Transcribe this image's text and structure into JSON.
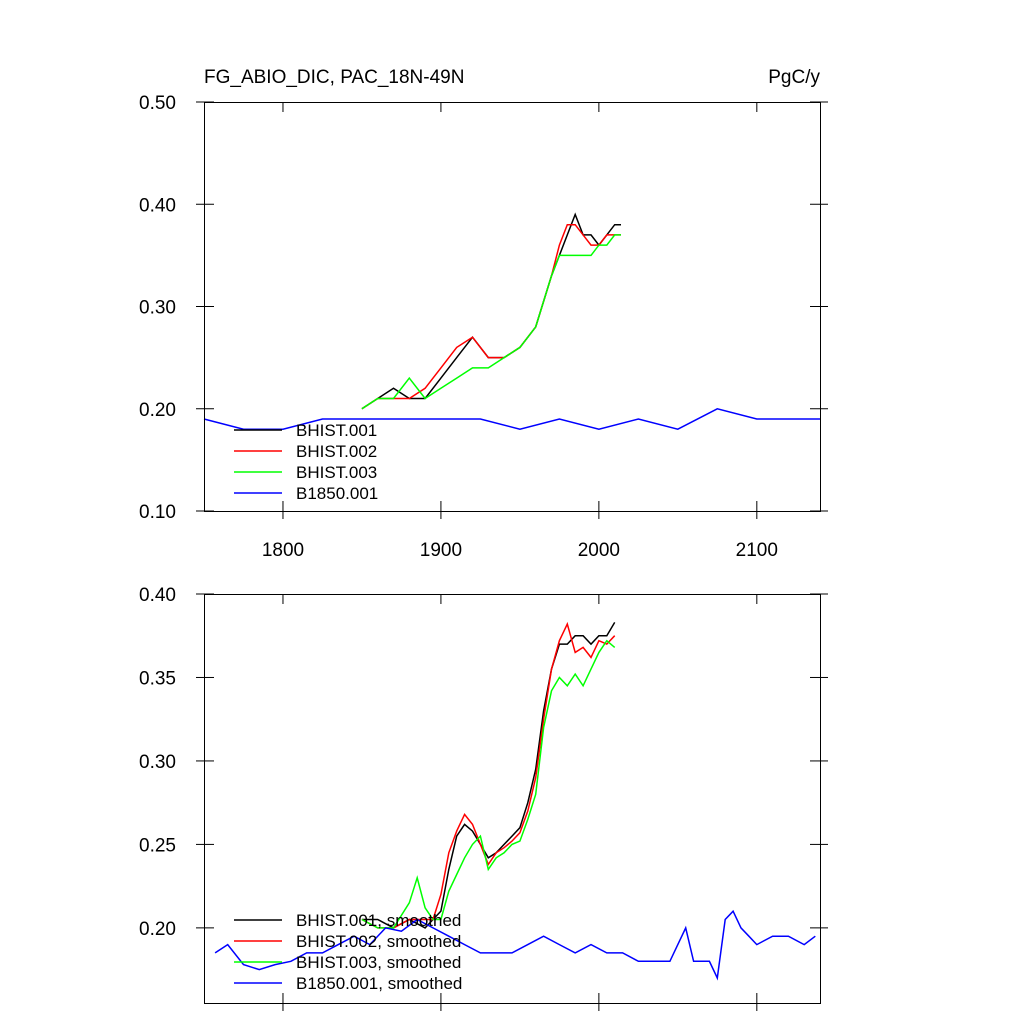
{
  "header": {
    "title_left": "FG_ABIO_DIC, PAC_18N-49N",
    "title_right": "PgC/y"
  },
  "colors": {
    "BHIST.001": "#000000",
    "BHIST.002": "#ff0000",
    "BHIST.003": "#00ff00",
    "B1850.001": "#0000ff"
  },
  "chart_data": [
    {
      "type": "line",
      "title": "FG_ABIO_DIC, PAC_18N-49N",
      "units": "PgC/y",
      "xlim": [
        1750,
        2140
      ],
      "ylim": [
        0.1,
        0.5
      ],
      "xticks": [
        1800,
        1900,
        2000,
        2100
      ],
      "xtick_labels": [
        "1800",
        "1900",
        "2000",
        "2100"
      ],
      "yticks": [
        0.1,
        0.2,
        0.3,
        0.4,
        0.5
      ],
      "ytick_labels": [
        "0.10",
        "0.20",
        "0.30",
        "0.40",
        "0.50"
      ],
      "legend_position": "bottom-left",
      "series": [
        {
          "name": "BHIST.001",
          "color": "#000000",
          "x": [
            1850,
            1860,
            1870,
            1880,
            1890,
            1900,
            1910,
            1920,
            1930,
            1940,
            1950,
            1960,
            1970,
            1975,
            1980,
            1985,
            1990,
            1995,
            2000,
            2005,
            2010,
            2014
          ],
          "y": [
            0.2,
            0.21,
            0.22,
            0.21,
            0.21,
            0.23,
            0.25,
            0.27,
            0.25,
            0.25,
            0.26,
            0.28,
            0.33,
            0.35,
            0.37,
            0.39,
            0.37,
            0.37,
            0.36,
            0.37,
            0.38,
            0.38
          ]
        },
        {
          "name": "BHIST.002",
          "color": "#ff0000",
          "x": [
            1850,
            1860,
            1870,
            1880,
            1890,
            1900,
            1910,
            1920,
            1930,
            1940,
            1950,
            1960,
            1970,
            1975,
            1980,
            1985,
            1990,
            1995,
            2000,
            2005,
            2010,
            2014
          ],
          "y": [
            0.2,
            0.21,
            0.21,
            0.21,
            0.22,
            0.24,
            0.26,
            0.27,
            0.25,
            0.25,
            0.26,
            0.28,
            0.33,
            0.36,
            0.38,
            0.38,
            0.37,
            0.36,
            0.36,
            0.37,
            0.37,
            0.37
          ]
        },
        {
          "name": "BHIST.003",
          "color": "#00ff00",
          "x": [
            1850,
            1860,
            1870,
            1880,
            1890,
            1900,
            1910,
            1920,
            1930,
            1940,
            1950,
            1960,
            1970,
            1975,
            1980,
            1985,
            1990,
            1995,
            2000,
            2005,
            2010,
            2014
          ],
          "y": [
            0.2,
            0.21,
            0.21,
            0.23,
            0.21,
            0.22,
            0.23,
            0.24,
            0.24,
            0.25,
            0.26,
            0.28,
            0.33,
            0.35,
            0.35,
            0.35,
            0.35,
            0.35,
            0.36,
            0.36,
            0.37,
            0.37
          ]
        },
        {
          "name": "B1850.001",
          "color": "#0000ff",
          "x": [
            1750,
            1775,
            1800,
            1825,
            1850,
            1875,
            1900,
            1925,
            1950,
            1975,
            2000,
            2025,
            2050,
            2075,
            2100,
            2125,
            2140
          ],
          "y": [
            0.19,
            0.18,
            0.18,
            0.19,
            0.19,
            0.19,
            0.19,
            0.19,
            0.18,
            0.19,
            0.18,
            0.19,
            0.18,
            0.2,
            0.19,
            0.19,
            0.19
          ]
        }
      ]
    },
    {
      "type": "line",
      "xlim": [
        1750,
        2140
      ],
      "ylim": [
        0.155,
        0.4
      ],
      "xticks": [
        1800,
        1900,
        2000,
        2100
      ],
      "yticks": [
        0.2,
        0.25,
        0.3,
        0.35,
        0.4
      ],
      "ytick_labels": [
        "0.20",
        "0.25",
        "0.30",
        "0.35",
        "0.40"
      ],
      "legend_position": "bottom-left",
      "series": [
        {
          "name": "BHIST.001, smoothed",
          "color": "#000000",
          "x": [
            1850,
            1860,
            1870,
            1880,
            1890,
            1895,
            1900,
            1905,
            1910,
            1915,
            1920,
            1925,
            1930,
            1935,
            1940,
            1945,
            1950,
            1955,
            1960,
            1965,
            1970,
            1975,
            1980,
            1985,
            1990,
            1995,
            2000,
            2005,
            2010
          ],
          "y": [
            0.205,
            0.205,
            0.2,
            0.205,
            0.2,
            0.205,
            0.21,
            0.235,
            0.255,
            0.262,
            0.258,
            0.25,
            0.242,
            0.245,
            0.25,
            0.255,
            0.26,
            0.275,
            0.295,
            0.33,
            0.355,
            0.37,
            0.37,
            0.375,
            0.375,
            0.37,
            0.375,
            0.375,
            0.383
          ]
        },
        {
          "name": "BHIST.002, smoothed",
          "color": "#ff0000",
          "x": [
            1850,
            1860,
            1870,
            1880,
            1890,
            1895,
            1900,
            1905,
            1910,
            1915,
            1920,
            1925,
            1930,
            1935,
            1940,
            1945,
            1950,
            1955,
            1960,
            1965,
            1970,
            1975,
            1980,
            1985,
            1990,
            1995,
            2000,
            2005,
            2010
          ],
          "y": [
            0.205,
            0.2,
            0.2,
            0.205,
            0.205,
            0.205,
            0.22,
            0.245,
            0.258,
            0.268,
            0.262,
            0.25,
            0.238,
            0.245,
            0.248,
            0.252,
            0.257,
            0.27,
            0.29,
            0.325,
            0.355,
            0.372,
            0.382,
            0.365,
            0.368,
            0.362,
            0.372,
            0.37,
            0.375
          ]
        },
        {
          "name": "BHIST.003, smoothed",
          "color": "#00ff00",
          "x": [
            1850,
            1860,
            1870,
            1880,
            1885,
            1890,
            1895,
            1900,
            1905,
            1910,
            1915,
            1920,
            1925,
            1930,
            1935,
            1940,
            1945,
            1950,
            1955,
            1960,
            1965,
            1970,
            1975,
            1980,
            1985,
            1990,
            1995,
            2000,
            2005,
            2010
          ],
          "y": [
            0.205,
            0.2,
            0.2,
            0.215,
            0.23,
            0.212,
            0.205,
            0.205,
            0.222,
            0.232,
            0.242,
            0.25,
            0.255,
            0.235,
            0.242,
            0.245,
            0.25,
            0.252,
            0.265,
            0.28,
            0.32,
            0.342,
            0.35,
            0.345,
            0.352,
            0.345,
            0.355,
            0.365,
            0.372,
            0.368
          ]
        },
        {
          "name": "B1850.001, smoothed",
          "color": "#0000ff",
          "x": [
            1757,
            1765,
            1775,
            1785,
            1795,
            1805,
            1815,
            1825,
            1835,
            1845,
            1855,
            1865,
            1875,
            1885,
            1895,
            1905,
            1915,
            1925,
            1935,
            1945,
            1955,
            1965,
            1975,
            1985,
            1995,
            2005,
            2015,
            2025,
            2035,
            2045,
            2055,
            2060,
            2070,
            2075,
            2080,
            2085,
            2090,
            2095,
            2100,
            2110,
            2120,
            2130,
            2137
          ],
          "y": [
            0.185,
            0.19,
            0.178,
            0.175,
            0.178,
            0.18,
            0.185,
            0.185,
            0.19,
            0.195,
            0.19,
            0.2,
            0.198,
            0.205,
            0.2,
            0.195,
            0.19,
            0.185,
            0.185,
            0.185,
            0.19,
            0.195,
            0.19,
            0.185,
            0.19,
            0.185,
            0.185,
            0.18,
            0.18,
            0.18,
            0.2,
            0.18,
            0.18,
            0.17,
            0.205,
            0.21,
            0.2,
            0.195,
            0.19,
            0.195,
            0.195,
            0.19,
            0.195
          ]
        }
      ]
    }
  ]
}
